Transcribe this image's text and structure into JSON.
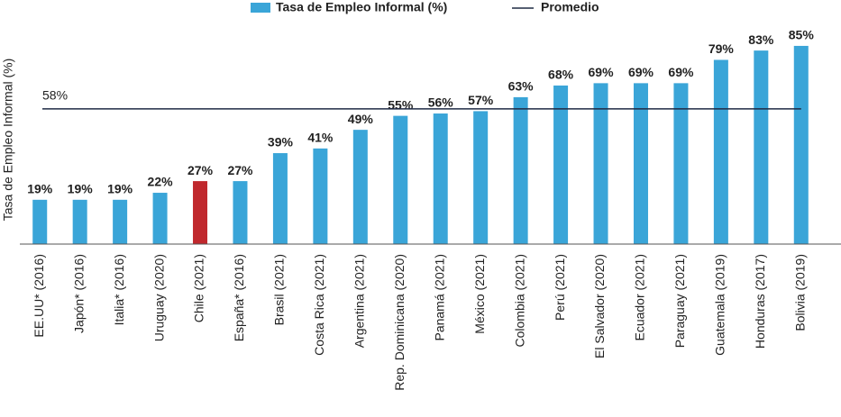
{
  "chart_data": {
    "type": "bar",
    "series_name": "Tasa de Empleo Informal (%)",
    "y_label": "Tasa de Empleo Informal (%)",
    "color": "#3aa5d8",
    "categories": [
      "EE.UU* (2016)",
      "Japón* (2016)",
      "Italia* (2016)",
      "Uruguay (2020)",
      "Chile (2021)",
      "España* (2016)",
      "Brasil (2021)",
      "Costa Rica (2021)",
      "Argentina (2021)",
      "Rep. Dominicana (2020)",
      "Panamá (2021)",
      "México (2021)",
      "Colombia (2021)",
      "Perú (2021)",
      "El Salvador (2020)",
      "Ecuador (2021)",
      "Paraguay (2021)",
      "Guatemala (2019)",
      "Honduras (2017)",
      "Bolivia (2019)"
    ],
    "values": [
      19,
      19,
      19,
      22,
      27,
      27,
      39,
      41,
      49,
      55,
      56,
      57,
      63,
      68,
      69,
      69,
      69,
      79,
      83,
      85
    ],
    "value_labels": [
      "19%",
      "19%",
      "19%",
      "22%",
      "27%",
      "27%",
      "39%",
      "41%",
      "49%",
      "55%",
      "56%",
      "57%",
      "63%",
      "68%",
      "69%",
      "69%",
      "69%",
      "79%",
      "83%",
      "85%"
    ],
    "bar_colors": [
      "#3aa5d8",
      "#3aa5d8",
      "#3aa5d8",
      "#3aa5d8",
      "#c0282d",
      "#3aa5d8",
      "#3aa5d8",
      "#3aa5d8",
      "#3aa5d8",
      "#3aa5d8",
      "#3aa5d8",
      "#3aa5d8",
      "#3aa5d8",
      "#3aa5d8",
      "#3aa5d8",
      "#3aa5d8",
      "#3aa5d8",
      "#3aa5d8",
      "#3aa5d8",
      "#3aa5d8"
    ],
    "average": {
      "name": "Promedio",
      "value": 58,
      "label": "58%",
      "color": "#1f2a44"
    },
    "ylim": [
      0,
      90
    ]
  }
}
